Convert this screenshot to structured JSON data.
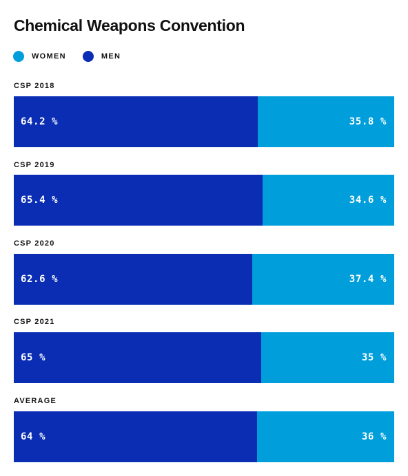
{
  "title": "Chemical Weapons Convention",
  "colors": {
    "women": "#009FDB",
    "men": "#0A2DB4"
  },
  "legend": [
    {
      "key": "women",
      "label": "WOMEN",
      "color": "#009FDB",
      "icon": "circle"
    },
    {
      "key": "men",
      "label": "MEN",
      "color": "#0A2DB4",
      "icon": "circle"
    }
  ],
  "chart_data": {
    "type": "bar",
    "orientation": "horizontal",
    "stacked": true,
    "normalized": true,
    "title": "Chemical Weapons Convention",
    "categories": [
      "CSP 2018",
      "CSP 2019",
      "CSP 2020",
      "CSP 2021",
      "AVERAGE"
    ],
    "series": [
      {
        "name": "MEN",
        "color": "#0A2DB4",
        "values": [
          64.2,
          65.4,
          62.6,
          65,
          64
        ],
        "labels": [
          "64.2 %",
          "65.4 %",
          "62.6 %",
          "65 %",
          "64 %"
        ]
      },
      {
        "name": "WOMEN",
        "color": "#009FDB",
        "values": [
          35.8,
          34.6,
          37.4,
          35,
          36
        ],
        "labels": [
          "35.8 %",
          "34.6 %",
          "37.4 %",
          "35 %",
          "36 %"
        ]
      }
    ],
    "unit": "%",
    "xlim": [
      0,
      100
    ],
    "legend_position": "top-left",
    "grid": false
  }
}
